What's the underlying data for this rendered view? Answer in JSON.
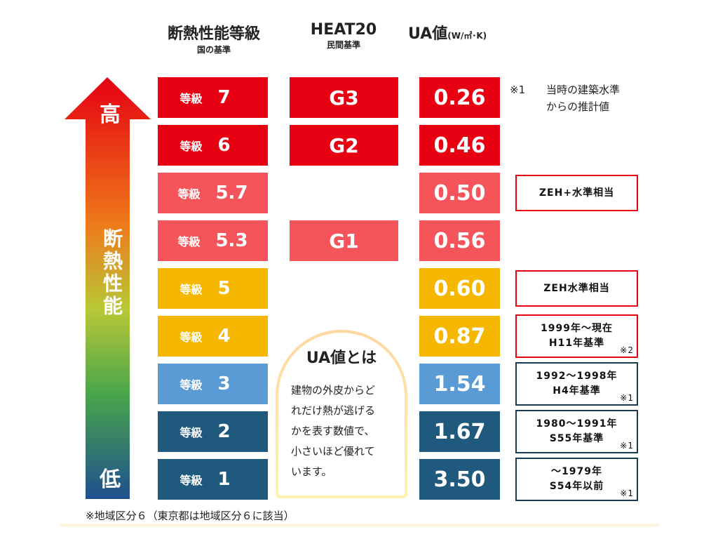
{
  "headers": [
    {
      "title": "断熱性能等級",
      "sub": "国の基準"
    },
    {
      "title": "HEAT20",
      "sub": "民間基準"
    },
    {
      "title": "UA値",
      "unit": "(W/㎡･K)"
    }
  ],
  "arrow": {
    "high": "高",
    "label": "断熱性能",
    "low": "低"
  },
  "note": {
    "mark": "※1",
    "lines": [
      "当時の建築水準",
      "からの推計値"
    ]
  },
  "rows": [
    {
      "grade_label": "等級",
      "grade": "7",
      "heat20": "G3",
      "ua": "0.26"
    },
    {
      "grade_label": "等級",
      "grade": "6",
      "heat20": "G2",
      "ua": "0.46"
    },
    {
      "grade_label": "等級",
      "grade": "5.7",
      "ua": "0.50",
      "side": {
        "lines": [
          "ZEH+水準相当"
        ]
      }
    },
    {
      "grade_label": "等級",
      "grade": "5.3",
      "heat20": "G1",
      "ua": "0.56"
    },
    {
      "grade_label": "等級",
      "grade": "5",
      "ua": "0.60",
      "side": {
        "lines": [
          "ZEH水準相当"
        ]
      }
    },
    {
      "grade_label": "等級",
      "grade": "4",
      "ua": "0.87",
      "side": {
        "lines": [
          "1999年～現在",
          "H11年基準"
        ],
        "mark": "※2"
      }
    },
    {
      "grade_label": "等級",
      "grade": "3",
      "ua": "1.54",
      "side": {
        "lines": [
          "1992～1998年",
          "H4年基準"
        ],
        "mark": "※1"
      }
    },
    {
      "grade_label": "等級",
      "grade": "2",
      "ua": "1.67",
      "side": {
        "lines": [
          "1980～1991年",
          "S55年基準"
        ],
        "mark": "※1"
      }
    },
    {
      "grade_label": "等級",
      "grade": "1",
      "ua": "3.50",
      "side": {
        "lines": [
          "～1979年",
          "S54年以前"
        ],
        "mark": "※1"
      }
    }
  ],
  "explainer": {
    "title": "UA値とは",
    "lines": [
      "建物の外皮からど",
      "れだけ熱が逃げる",
      "かを表す数値で、",
      "小さいほど優れて",
      "います。"
    ]
  },
  "footnote": "※地域区分６（東京都は地域区分６に該当）"
}
